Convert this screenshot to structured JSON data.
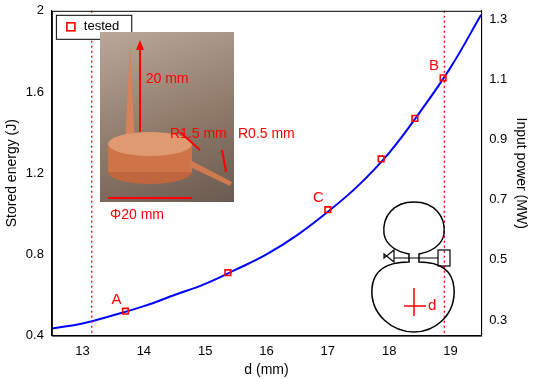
{
  "chart_data": {
    "type": "line",
    "xlabel": "d (mm)",
    "ylabel": "Stored energy (J)",
    "y2label": "Input power (MW)",
    "xlim": [
      12.5,
      19.5
    ],
    "xticks": [
      13,
      14,
      15,
      16,
      17,
      18,
      19
    ],
    "ylim": [
      0.4,
      2
    ],
    "yticks": [
      0.4,
      0.8,
      1.2,
      1.6,
      2
    ],
    "y2lim": [
      0.248,
      1.328
    ],
    "y2ticks": [
      0.3,
      0.5,
      0.7,
      0.9,
      1.1,
      1.3
    ],
    "grid": false,
    "legend": "upper left",
    "series": [
      {
        "name": "tested",
        "type": "scatter",
        "color": "#ff0000",
        "marker": "square",
        "x": [
          13.7,
          15.37,
          17.0,
          17.87,
          18.42,
          18.88
        ],
        "values": [
          0.52,
          0.71,
          1.02,
          1.27,
          1.47,
          1.67
        ],
        "point_labels": [
          "A",
          null,
          "C",
          null,
          null,
          "B"
        ]
      },
      {
        "type": "line",
        "color": "#0000ff",
        "line_style": "solid",
        "x": [
          12.5,
          13,
          13.5,
          14,
          14.5,
          15,
          15.5,
          16,
          16.5,
          17,
          17.5,
          18,
          18.5,
          19,
          19.5
        ],
        "values": [
          0.435,
          0.46,
          0.5,
          0.545,
          0.6,
          0.655,
          0.725,
          0.8,
          0.895,
          1.01,
          1.14,
          1.3,
          1.5,
          1.72,
          1.98
        ]
      }
    ],
    "vlines": [
      {
        "x": 13.15,
        "color": "#ff0000",
        "line_style": "dotted"
      },
      {
        "x": 18.9,
        "color": "#ff0000",
        "line_style": "dotted"
      }
    ],
    "annotations": [
      "20 mm",
      "R1.5 mm",
      "R0.5 mm",
      "Φ20 mm",
      "d"
    ]
  }
}
